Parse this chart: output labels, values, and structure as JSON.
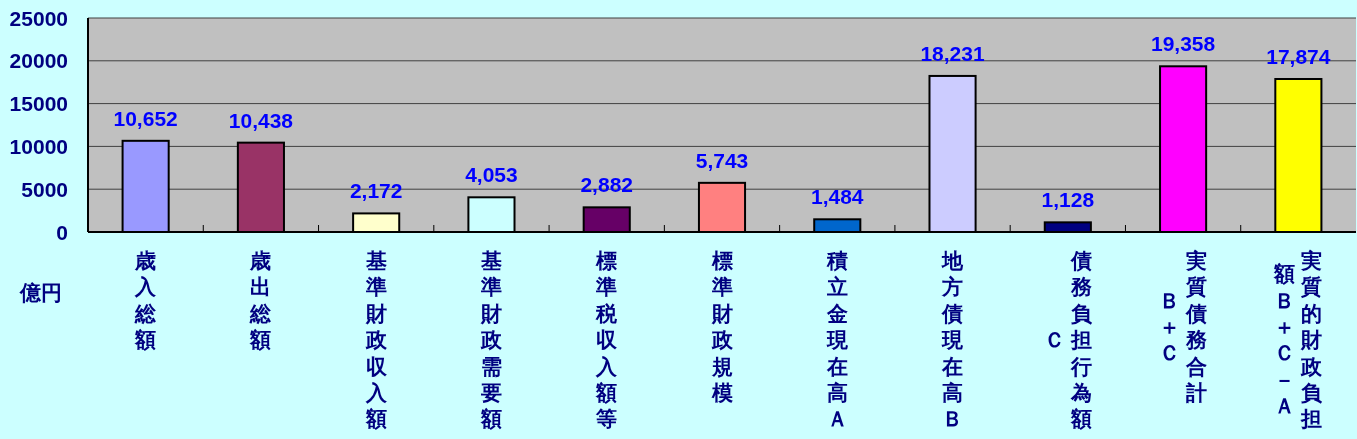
{
  "chart_data": {
    "type": "bar",
    "ylabel": "億円",
    "categories": [
      "歳入総額",
      "歳出総額",
      "基準財政収入額",
      "基準財政需要額",
      "標準税収入額等",
      "標準財政規模",
      "積立金現在高Ａ",
      "地方債現在高Ｂ",
      "債務負担行為額Ｃ",
      "実質債務合計Ｂ＋Ｃ",
      "実質的財政負担額Ｂ＋Ｃ－Ａ"
    ],
    "values": [
      10652,
      10438,
      2172,
      4053,
      2882,
      5743,
      1484,
      18231,
      1128,
      19358,
      17874
    ],
    "colors": [
      "#9999ff",
      "#993366",
      "#ffffcc",
      "#ccffff",
      "#660066",
      "#ff8080",
      "#0066cc",
      "#ccccff",
      "#000080",
      "#ff00ff",
      "#ffff00"
    ],
    "value_labels": [
      "10,652",
      "10,438",
      "2,172",
      "4,053",
      "2,882",
      "5,743",
      "1,484",
      "18,231",
      "1,128",
      "19,358",
      "17,874"
    ],
    "ylim": [
      0,
      25000
    ],
    "yticks": [
      0,
      5000,
      10000,
      15000,
      20000,
      25000
    ],
    "grid": "y"
  }
}
